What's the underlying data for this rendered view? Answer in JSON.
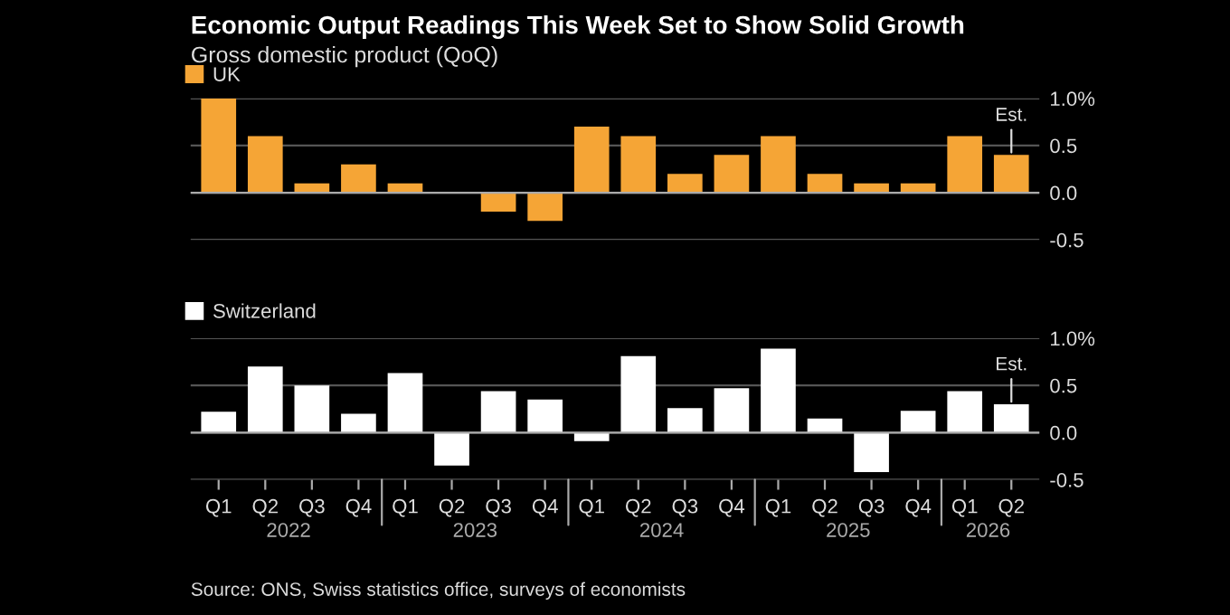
{
  "chart_data": [
    {
      "type": "bar",
      "title": "Economic Output Readings This Week Set to Show Solid Growth",
      "subtitle": "Gross domestic product (QoQ)",
      "categories": [
        null,
        null,
        null,
        null,
        null,
        null,
        null,
        null,
        null,
        null,
        null,
        null,
        null,
        null,
        null,
        null,
        null,
        null
      ],
      "series": [
        {
          "name": "UK",
          "color": "#f5a536",
          "values": [
            1.0,
            0.6,
            0.1,
            0.3,
            0.1,
            0.0,
            -0.2,
            -0.3,
            0.7,
            0.6,
            0.2,
            0.4,
            0.6,
            0.2,
            0.1,
            0.1,
            0.6,
            0.4
          ]
        }
      ],
      "ylim": [
        -0.5,
        1.0
      ],
      "yticks": [
        {
          "value": -0.5,
          "label": "-0.5"
        },
        {
          "value": 0,
          "label": "0.0"
        },
        {
          "value": 0.5,
          "label": "0.5"
        },
        {
          "value": 1.0,
          "label": "1.0%"
        }
      ],
      "grid": "y",
      "legend": "top left",
      "tick_labels": "y",
      "annotations": [
        "Est."
      ]
    },
    {
      "type": "bar",
      "categories": [
        "Q1",
        "Q2",
        "Q3",
        "Q4",
        "Q1",
        "Q2",
        "Q3",
        "Q4",
        "Q1",
        "Q2",
        "Q3",
        "Q4",
        "Q1",
        "Q2",
        "Q3",
        "Q4",
        "Q1",
        "Q2"
      ],
      "series": [
        {
          "name": "Switzerland",
          "color": "#ffffff",
          "values": [
            0.22,
            0.7,
            0.5,
            0.2,
            0.63,
            -0.35,
            0.44,
            0.35,
            -0.09,
            0.81,
            0.26,
            0.47,
            0.89,
            0.15,
            -0.42,
            0.23,
            0.44,
            0.3
          ]
        }
      ],
      "ylim": [
        -0.5,
        1.0
      ],
      "yticks": [
        {
          "value": -0.5,
          "label": "-0.5"
        },
        {
          "value": 0,
          "label": "0.0"
        },
        {
          "value": 0.5,
          "label": "0.5"
        },
        {
          "value": 1.0,
          "label": "1.0%"
        }
      ],
      "grid": "y",
      "legend": "top left",
      "annotations": [
        "Est.",
        {
          "text": "2022"
        },
        {
          "text": "2023"
        },
        {
          "text": "2024"
        },
        {
          "text": "2025"
        },
        {
          "text": "2026"
        },
        "Source: ONS, Swiss statistics office, surveys of economists"
      ]
    }
  ]
}
